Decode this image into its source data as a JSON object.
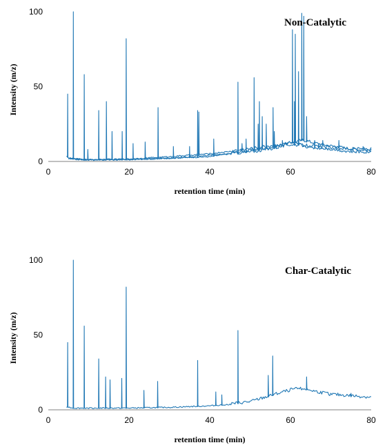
{
  "chart_data": [
    {
      "type": "line",
      "title": "Non-Catalytic",
      "xlabel": "retention time (min)",
      "ylabel": "Intensity (m/z)",
      "xlim": [
        0,
        80
      ],
      "ylim": [
        0,
        100
      ],
      "xticks": [
        "0",
        "20",
        "40",
        "60",
        "80"
      ],
      "yticks": [
        "0",
        "50",
        "100"
      ],
      "grid": false,
      "series_color": "#1f77b4",
      "baseline": [
        [
          4.5,
          3
        ],
        [
          6,
          1.5
        ],
        [
          10,
          1
        ],
        [
          20,
          1.2
        ],
        [
          30,
          2
        ],
        [
          40,
          3
        ],
        [
          45,
          5
        ],
        [
          50,
          7
        ],
        [
          55,
          9
        ],
        [
          60,
          12
        ],
        [
          63,
          14
        ],
        [
          66,
          12
        ],
        [
          70,
          10
        ],
        [
          75,
          8
        ],
        [
          80,
          7
        ]
      ],
      "peaks": [
        [
          4.8,
          45
        ],
        [
          6.2,
          100
        ],
        [
          8.9,
          58
        ],
        [
          9.8,
          8
        ],
        [
          12.5,
          34
        ],
        [
          14.4,
          40
        ],
        [
          15.8,
          20
        ],
        [
          18.3,
          20
        ],
        [
          19.3,
          82
        ],
        [
          21,
          12
        ],
        [
          24,
          13
        ],
        [
          27.2,
          36
        ],
        [
          31,
          10
        ],
        [
          35,
          10
        ],
        [
          37,
          34
        ],
        [
          41,
          15
        ],
        [
          47,
          53
        ],
        [
          51,
          56
        ],
        [
          52.3,
          40
        ],
        [
          54,
          25
        ],
        [
          55.7,
          36
        ],
        [
          60.5,
          88
        ],
        [
          61.2,
          85
        ],
        [
          62.8,
          99
        ],
        [
          63.3,
          97
        ],
        [
          64,
          30
        ],
        [
          68,
          14
        ],
        [
          72,
          14
        ]
      ],
      "secondary_series": [
        {
          "baseline": [
            [
              5,
              2
            ],
            [
              10,
              1
            ],
            [
              20,
              1.5
            ],
            [
              30,
              3
            ],
            [
              40,
              5
            ],
            [
              50,
              8
            ],
            [
              55,
              10
            ],
            [
              60,
              12
            ],
            [
              65,
              9
            ],
            [
              70,
              8
            ],
            [
              75,
              6
            ],
            [
              80,
              6
            ]
          ],
          "peaks": [
            [
              37.3,
              33
            ],
            [
              48,
              12
            ],
            [
              53,
              30
            ],
            [
              58,
              14
            ],
            [
              62,
              60
            ],
            [
              66,
              14
            ]
          ]
        },
        {
          "baseline": [
            [
              5,
              1.5
            ],
            [
              10,
              0.8
            ],
            [
              20,
              1
            ],
            [
              30,
              2
            ],
            [
              40,
              4
            ],
            [
              50,
              6
            ],
            [
              55,
              8
            ],
            [
              60,
              11
            ],
            [
              65,
              10
            ],
            [
              70,
              9
            ],
            [
              75,
              8
            ],
            [
              80,
              8
            ]
          ],
          "peaks": [
            [
              49,
              15
            ],
            [
              52,
              25
            ],
            [
              56,
              20
            ],
            [
              61,
              40
            ],
            [
              67,
              12
            ],
            [
              78,
              10
            ]
          ]
        }
      ]
    },
    {
      "type": "line",
      "title": "Char-Catalytic",
      "xlabel": "retention time (min)",
      "ylabel": "Intensity (m/z)",
      "xlim": [
        0,
        80
      ],
      "ylim": [
        0,
        100
      ],
      "xticks": [
        "0",
        "20",
        "40",
        "60",
        "80"
      ],
      "yticks": [
        "0",
        "50",
        "100"
      ],
      "grid": false,
      "series_color": "#1f77b4",
      "baseline": [
        [
          4.5,
          2
        ],
        [
          6,
          1
        ],
        [
          10,
          1
        ],
        [
          20,
          1
        ],
        [
          30,
          1.5
        ],
        [
          40,
          2.5
        ],
        [
          45,
          3.5
        ],
        [
          50,
          5
        ],
        [
          55,
          9
        ],
        [
          60,
          13
        ],
        [
          63,
          14
        ],
        [
          66,
          12
        ],
        [
          70,
          10
        ],
        [
          75,
          9
        ],
        [
          80,
          8
        ]
      ],
      "peaks": [
        [
          4.8,
          45
        ],
        [
          6.2,
          100
        ],
        [
          8.9,
          56
        ],
        [
          12.5,
          34
        ],
        [
          14.2,
          22
        ],
        [
          15.3,
          20
        ],
        [
          18.2,
          21
        ],
        [
          19.3,
          82
        ],
        [
          23.7,
          13
        ],
        [
          27.1,
          19
        ],
        [
          37,
          33
        ],
        [
          41.5,
          12
        ],
        [
          43,
          10
        ],
        [
          47,
          53
        ],
        [
          54.5,
          23
        ],
        [
          55.6,
          36
        ],
        [
          64,
          22
        ],
        [
          75,
          11
        ]
      ]
    }
  ]
}
